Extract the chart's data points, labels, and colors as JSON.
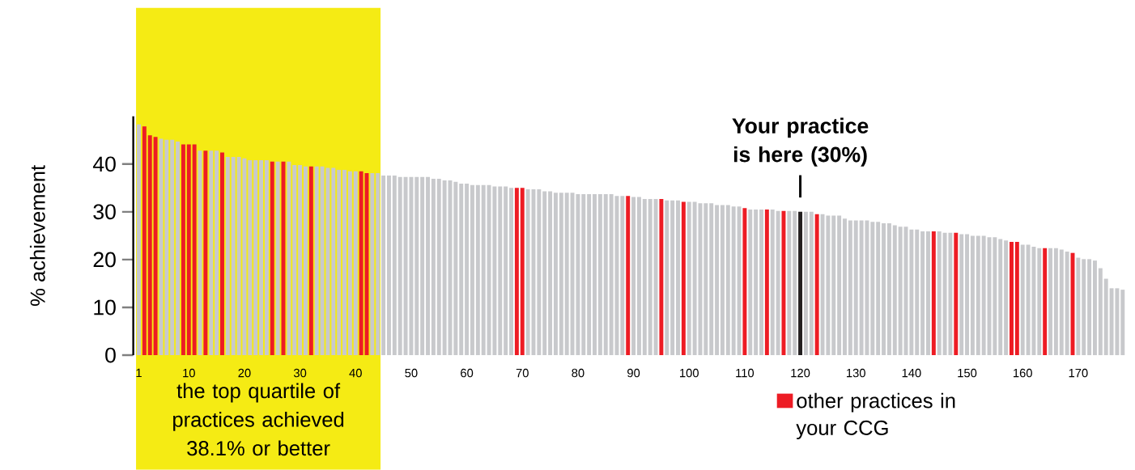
{
  "chart_data": {
    "type": "bar",
    "ylabel": "% achievement",
    "x": [
      1,
      2,
      3,
      4,
      5,
      6,
      7,
      8,
      9,
      10,
      11,
      12,
      13,
      14,
      15,
      16,
      17,
      18,
      19,
      20,
      21,
      22,
      23,
      24,
      25,
      26,
      27,
      28,
      29,
      30,
      31,
      32,
      33,
      34,
      35,
      36,
      37,
      38,
      39,
      40,
      41,
      42,
      43,
      44,
      45,
      46,
      47,
      48,
      49,
      50,
      51,
      52,
      53,
      54,
      55,
      56,
      57,
      58,
      59,
      60,
      61,
      62,
      63,
      64,
      65,
      66,
      67,
      68,
      69,
      70,
      71,
      72,
      73,
      74,
      75,
      76,
      77,
      78,
      79,
      80,
      81,
      82,
      83,
      84,
      85,
      86,
      87,
      88,
      89,
      90,
      91,
      92,
      93,
      94,
      95,
      96,
      97,
      98,
      99,
      100,
      101,
      102,
      103,
      104,
      105,
      106,
      107,
      108,
      109,
      110,
      111,
      112,
      113,
      114,
      115,
      116,
      117,
      118,
      119,
      120,
      121,
      122,
      123,
      124,
      125,
      126,
      127,
      128,
      129,
      130,
      131,
      132,
      133,
      134,
      135,
      136,
      137,
      138,
      139,
      140,
      141,
      142,
      143,
      144,
      145,
      146,
      147,
      148,
      149,
      150,
      151,
      152,
      153,
      154,
      155,
      156,
      157,
      158,
      159,
      160,
      161,
      162,
      163,
      164,
      165,
      166,
      167,
      168,
      169,
      170,
      171,
      172,
      173,
      174,
      175,
      176,
      177,
      178
    ],
    "xlim": [
      0,
      179.5
    ],
    "xticks": [
      1,
      10,
      20,
      30,
      40,
      50,
      60,
      70,
      80,
      90,
      100,
      110,
      120,
      130,
      140,
      150,
      160,
      170
    ],
    "ylim": [
      0,
      50
    ],
    "yticks": [
      0,
      10,
      20,
      30,
      40
    ],
    "series": [
      {
        "color": "#c8c9cc",
        "values": [
          48.3,
          null,
          null,
          null,
          45.3,
          45.1,
          45.1,
          44.7,
          null,
          null,
          null,
          42.8,
          null,
          42.8,
          42.8,
          null,
          41.5,
          41.5,
          41.5,
          41.2,
          40.8,
          40.8,
          40.8,
          40.8,
          null,
          40.5,
          null,
          40.5,
          39.8,
          39.8,
          39.5,
          null,
          39.5,
          39.5,
          39.2,
          39.2,
          38.8,
          38.8,
          38.5,
          38.5,
          null,
          null,
          38.1,
          38.1,
          37.6,
          37.6,
          37.6,
          37.3,
          37.3,
          37.3,
          37.3,
          37.3,
          37.3,
          36.9,
          36.9,
          36.6,
          36.6,
          36.3,
          35.9,
          35.9,
          35.6,
          35.6,
          35.6,
          35.6,
          35.3,
          35.3,
          35.3,
          35.0,
          null,
          null,
          34.7,
          34.7,
          34.7,
          34.3,
          34.3,
          34.0,
          34.0,
          34.0,
          34.0,
          33.7,
          33.7,
          33.7,
          33.7,
          33.7,
          33.7,
          33.7,
          33.3,
          33.3,
          null,
          33.1,
          33.1,
          32.7,
          32.7,
          32.7,
          null,
          32.4,
          32.4,
          32.4,
          null,
          32.1,
          32.1,
          31.8,
          31.8,
          31.8,
          31.4,
          31.4,
          31.4,
          31.1,
          31.1,
          null,
          30.5,
          30.5,
          30.5,
          null,
          30.5,
          30.2,
          null,
          30.2,
          30.2,
          null,
          30.0,
          30.0,
          null,
          29.5,
          29.2,
          29.2,
          29.2,
          28.6,
          28.2,
          28.2,
          28.2,
          28.2,
          27.9,
          27.9,
          27.6,
          27.6,
          27.2,
          26.9,
          26.9,
          26.3,
          26.3,
          25.9,
          25.9,
          null,
          25.9,
          25.6,
          25.6,
          null,
          25.3,
          25.3,
          25.0,
          25.0,
          25.0,
          24.7,
          24.7,
          24.3,
          24.0,
          null,
          null,
          23.1,
          23.1,
          22.7,
          22.4,
          null,
          22.4,
          22.4,
          22.1,
          21.7,
          null,
          20.4,
          20.1,
          20.1,
          19.8,
          18.2,
          16.0,
          14.0,
          14.0,
          13.7
        ]
      },
      {
        "name": "other practices in your CCG",
        "color": "#ed1c24",
        "x": [
          2,
          3,
          4,
          9,
          10,
          11,
          13,
          16,
          25,
          27,
          32,
          41,
          42,
          69,
          70,
          89,
          95,
          99,
          110,
          114,
          117,
          123,
          144,
          148,
          158,
          159,
          164,
          169
        ],
        "values": [
          47.9,
          46.0,
          45.7,
          44.1,
          44.1,
          44.1,
          42.8,
          42.4,
          40.5,
          40.5,
          39.5,
          38.5,
          38.1,
          35.0,
          35.0,
          33.3,
          32.7,
          32.1,
          30.8,
          30.5,
          30.2,
          29.5,
          25.9,
          25.6,
          23.7,
          23.7,
          22.4,
          21.4
        ]
      },
      {
        "color": "#231f20",
        "x": [
          120
        ],
        "values": [
          30.0
        ]
      }
    ],
    "bands": [
      {
        "axis": "x",
        "from": 0.5,
        "to": 44.5,
        "label": "the top quartile of practices achieved 38.1% or better",
        "color": "#f5eb14"
      }
    ],
    "annotations": [
      {
        "text": "Your practice is here (30%)",
        "x": 120,
        "y": 30
      }
    ],
    "legend": "bottom right"
  }
}
